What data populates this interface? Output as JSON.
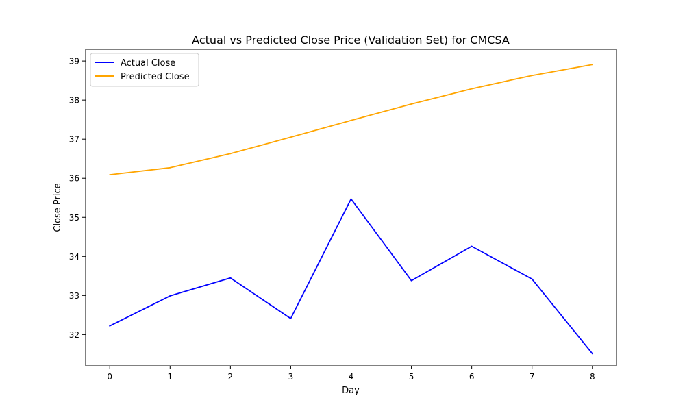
{
  "chart_data": {
    "type": "line",
    "title": "Actual vs Predicted Close Price (Validation Set) for CMCSA",
    "xlabel": "Day",
    "ylabel": "Close Price",
    "x": [
      0,
      1,
      2,
      3,
      4,
      5,
      6,
      7,
      8
    ],
    "xticks": [
      "0",
      "1",
      "2",
      "3",
      "4",
      "5",
      "6",
      "7",
      "8"
    ],
    "yticks": [
      "32",
      "33",
      "34",
      "35",
      "36",
      "37",
      "38",
      "39"
    ],
    "xlim": [
      -0.4,
      8.4
    ],
    "ylim": [
      31.2,
      39.3
    ],
    "grid": false,
    "legend_position": "top-left",
    "series": [
      {
        "name": "Actual Close",
        "color": "#0000ff",
        "values": [
          32.22,
          32.99,
          33.45,
          32.41,
          35.47,
          33.38,
          34.26,
          33.42,
          31.51
        ]
      },
      {
        "name": "Predicted Close",
        "color": "#ffa500",
        "values": [
          36.09,
          36.27,
          36.63,
          37.05,
          37.48,
          37.9,
          38.29,
          38.63,
          38.91
        ]
      }
    ]
  }
}
